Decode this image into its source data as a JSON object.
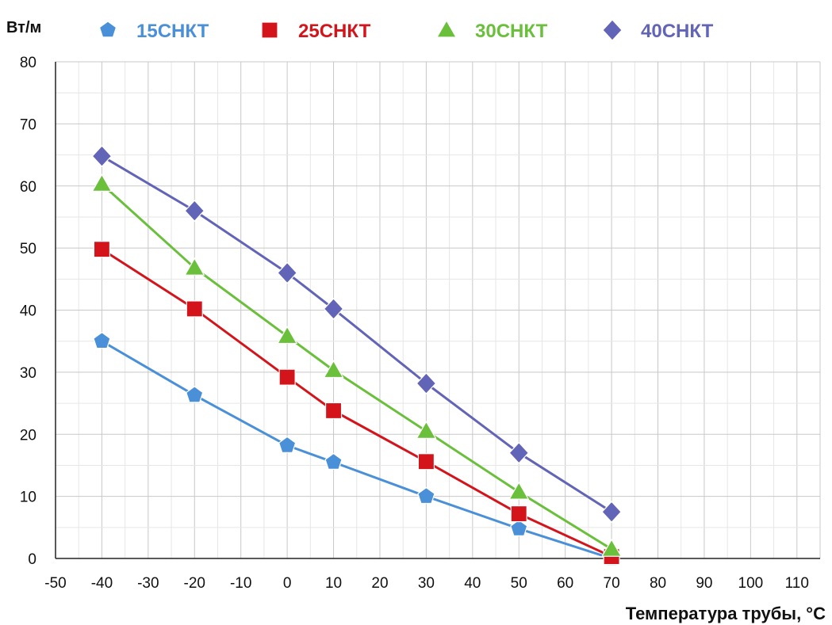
{
  "chart_data": {
    "type": "line",
    "ylabel": "Вт/м",
    "xlabel": "Температура трубы, °C",
    "xlim": [
      -50,
      115
    ],
    "ylim": [
      0,
      80
    ],
    "x_ticks": [
      -50,
      -40,
      -30,
      -20,
      -10,
      0,
      10,
      20,
      30,
      40,
      50,
      60,
      70,
      80,
      90,
      100,
      110
    ],
    "y_ticks": [
      0,
      10,
      20,
      30,
      40,
      50,
      60,
      70,
      80
    ],
    "grid": true,
    "legend_position": "top",
    "series": [
      {
        "name": "15СНКТ",
        "color": "#4a90d9",
        "marker": "pentagon",
        "points": [
          [
            -40,
            35
          ],
          [
            -20,
            26.3
          ],
          [
            0,
            18.2
          ],
          [
            10,
            15.5
          ],
          [
            30,
            10
          ],
          [
            50,
            4.8
          ],
          [
            70,
            0
          ]
        ]
      },
      {
        "name": "25СНКТ",
        "color": "#d3141b",
        "marker": "square",
        "points": [
          [
            -40,
            49.8
          ],
          [
            -20,
            40.2
          ],
          [
            0,
            29.2
          ],
          [
            10,
            23.8
          ],
          [
            30,
            15.6
          ],
          [
            50,
            7.2
          ],
          [
            70,
            0.3
          ]
        ]
      },
      {
        "name": "30СНКТ",
        "color": "#6abf3b",
        "marker": "triangle",
        "points": [
          [
            -40,
            60.3
          ],
          [
            -20,
            46.8
          ],
          [
            0,
            35.8
          ],
          [
            10,
            30.3
          ],
          [
            30,
            20.5
          ],
          [
            50,
            10.7
          ],
          [
            70,
            1.5
          ]
        ]
      },
      {
        "name": "40СНКТ",
        "color": "#6264b8",
        "marker": "diamond",
        "points": [
          [
            -40,
            64.8
          ],
          [
            -20,
            56
          ],
          [
            0,
            46
          ],
          [
            10,
            40.2
          ],
          [
            30,
            28.2
          ],
          [
            50,
            17
          ],
          [
            70,
            7.5
          ]
        ]
      }
    ]
  }
}
